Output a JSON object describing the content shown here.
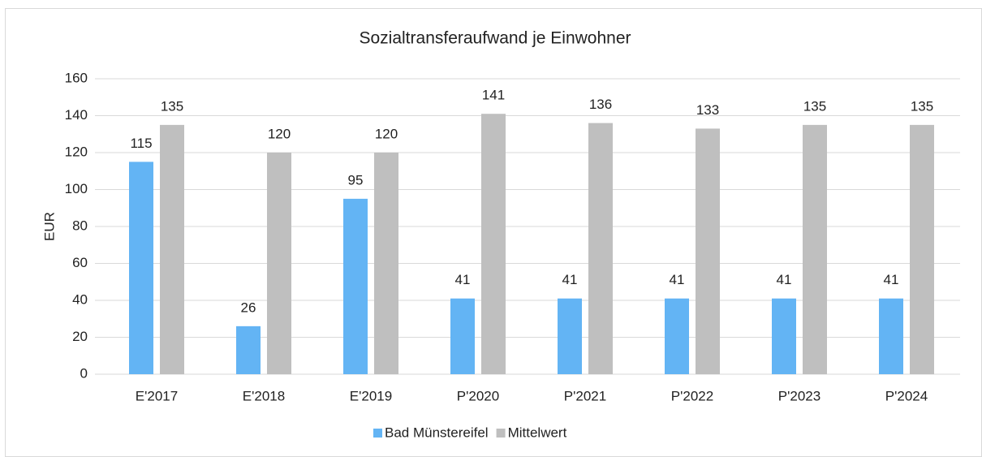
{
  "chart_data": {
    "type": "bar",
    "title": "Sozialtransferaufwand je Einwohner",
    "y_label": "EUR",
    "categories": [
      "E'2017",
      "E'2018",
      "E'2019",
      "P'2020",
      "P'2021",
      "P'2022",
      "P'2023",
      "P'2024"
    ],
    "series": [
      {
        "name": "Bad Münstereifel",
        "color": "#63b4f4",
        "values": [
          115,
          26,
          95,
          41,
          41,
          41,
          41,
          41
        ]
      },
      {
        "name": "Mittelwert",
        "color": "#bfbfbf",
        "values": [
          135,
          120,
          120,
          141,
          136,
          133,
          135,
          135
        ]
      }
    ],
    "ylim": [
      0,
      160
    ],
    "yticks": [
      0,
      20,
      40,
      60,
      80,
      100,
      120,
      140,
      160
    ],
    "grid": true,
    "legend": "bottom"
  }
}
